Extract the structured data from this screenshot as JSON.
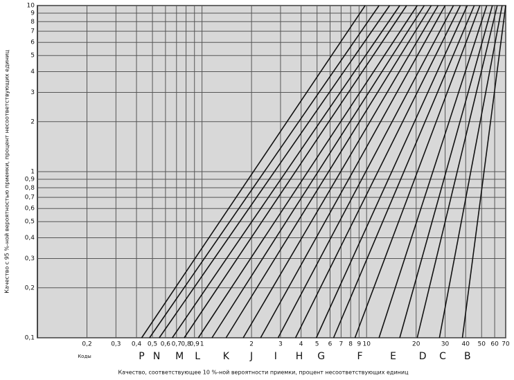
{
  "chart_data": {
    "type": "line",
    "x_label": "Качество, соответствующее 10 %-ной вероятности приемки, процент несоответствующих единиц",
    "y_label": "Качество с 95 %-ной вероятностью приемки, процент несоответствующих единиц",
    "log_x": true,
    "log_y": true,
    "grid": true,
    "color": "#111111",
    "xlim": [
      0.1,
      70
    ],
    "ylim": [
      0.1,
      10
    ],
    "xticks": [
      {
        "value": 0.2,
        "label": "0,2"
      },
      {
        "value": 0.3,
        "label": "0,3"
      },
      {
        "value": 0.4,
        "label": "0,4"
      },
      {
        "value": 0.5,
        "label": "0,5"
      },
      {
        "value": 0.6,
        "label": "0,6"
      },
      {
        "value": 0.7,
        "label": "0,7"
      },
      {
        "value": 0.8,
        "label": "0,8"
      },
      {
        "value": 0.9,
        "label": "0,9"
      },
      1,
      2,
      3,
      4,
      5,
      6,
      7,
      8,
      9,
      10,
      20,
      30,
      40,
      50,
      60,
      70
    ],
    "yticks": [
      {
        "value": 0.1,
        "label": "0,1"
      },
      {
        "value": 0.2,
        "label": "0,2"
      },
      {
        "value": 0.3,
        "label": "0,3"
      },
      {
        "value": 0.4,
        "label": "0,4"
      },
      {
        "value": 0.5,
        "label": "0,5"
      },
      {
        "value": 0.6,
        "label": "0,6"
      },
      {
        "value": 0.7,
        "label": "0,7"
      },
      {
        "value": 0.8,
        "label": "0,8"
      },
      {
        "value": 0.9,
        "label": "0,9"
      },
      1,
      2,
      3,
      4,
      5,
      6,
      7,
      8,
      9,
      10
    ],
    "codes": {
      "label": "Коды",
      "items": [
        {
          "label": "P",
          "x": 0.43
        },
        {
          "label": "N",
          "x": 0.53
        },
        {
          "label": "M",
          "x": 0.73
        },
        {
          "label": "L",
          "x": 0.94
        },
        {
          "label": "K",
          "x": 1.4
        },
        {
          "label": "J",
          "x": 2.0
        },
        {
          "label": "I",
          "x": 2.8
        },
        {
          "label": "H",
          "x": 3.9
        },
        {
          "label": "G",
          "x": 5.3
        },
        {
          "label": "F",
          "x": 9.1
        },
        {
          "label": "E",
          "x": 14.5
        },
        {
          "label": "D",
          "x": 21.9
        },
        {
          "label": "C",
          "x": 29
        },
        {
          "label": "B",
          "x": 41
        }
      ]
    },
    "series": [
      {
        "x": [
          0.43,
          9.8
        ],
        "values": [
          0.1,
          10
        ]
      },
      {
        "x": [
          0.48,
          11.9
        ],
        "values": [
          0.1,
          10
        ]
      },
      {
        "x": [
          0.55,
          13.8
        ],
        "values": [
          0.1,
          10
        ]
      },
      {
        "x": [
          0.66,
          15.9
        ],
        "values": [
          0.1,
          10
        ]
      },
      {
        "x": [
          0.78,
          17.5
        ],
        "values": [
          0.1,
          10
        ]
      },
      {
        "x": [
          0.95,
          20.3
        ],
        "values": [
          0.1,
          10
        ]
      },
      {
        "x": [
          1.15,
          22.4
        ],
        "values": [
          0.1,
          10
        ]
      },
      {
        "x": [
          1.4,
          24.7
        ],
        "values": [
          0.1,
          10
        ]
      },
      {
        "x": [
          1.78,
          27.2
        ],
        "values": [
          0.1,
          10
        ]
      },
      {
        "x": [
          2.27,
          30
        ],
        "values": [
          0.1,
          10
        ]
      },
      {
        "x": [
          2.9,
          33.7
        ],
        "values": [
          0.1,
          10
        ]
      },
      {
        "x": [
          3.7,
          37.1
        ],
        "values": [
          0.1,
          10
        ]
      },
      {
        "x": [
          4.95,
          40.9
        ],
        "values": [
          0.1,
          10
        ]
      },
      {
        "x": [
          6.3,
          45.1
        ],
        "values": [
          0.1,
          10
        ]
      },
      {
        "x": [
          8.5,
          48.8
        ],
        "values": [
          0.1,
          10
        ]
      },
      {
        "x": [
          11.9,
          53.7
        ],
        "values": [
          0.1,
          10
        ]
      },
      {
        "x": [
          15.9,
          58.1
        ],
        "values": [
          0.1,
          10
        ]
      },
      {
        "x": [
          20.3,
          62.2
        ],
        "values": [
          0.1,
          10
        ]
      },
      {
        "x": [
          27.7,
          66.6
        ],
        "values": [
          0.1,
          10
        ]
      },
      {
        "x": [
          38.2,
          70
        ],
        "values": [
          0.1,
          10
        ]
      }
    ]
  }
}
